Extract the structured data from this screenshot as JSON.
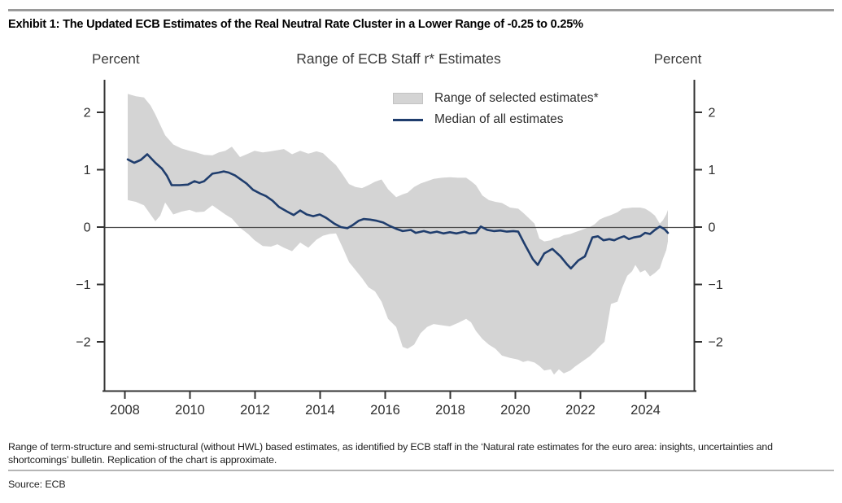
{
  "header": {
    "title": "Exhibit 1: The Updated ECB Estimates of the Real Neutral Rate Cluster in a Lower Range of -0.25 to 0.25%"
  },
  "chart": {
    "title": "Range of ECB Staff r* Estimates",
    "left_axis_label": "Percent",
    "right_axis_label": "Percent",
    "legend": [
      {
        "label": "Range of selected estimates*",
        "type": "band",
        "color": "#d4d4d4"
      },
      {
        "label": "Median of all estimates",
        "type": "line",
        "color": "#1f3d6d"
      }
    ]
  },
  "chart_data": {
    "type": "line",
    "title": "Range of ECB Staff r* Estimates",
    "xlabel": "",
    "ylabel": "Percent",
    "xlim": [
      2007.35,
      2025.5
    ],
    "ylim": [
      -2.85,
      2.57
    ],
    "xticks": [
      2008,
      2010,
      2012,
      2014,
      2016,
      2018,
      2020,
      2022,
      2024
    ],
    "yticks": [
      2,
      1,
      0,
      -1,
      -2
    ],
    "grid": false,
    "legend_position": "top-center-inside",
    "series": [
      {
        "name": "Range of selected estimates*",
        "type": "band",
        "color": "#d4d4d4",
        "points_format": [
          "year",
          "lower",
          "upper"
        ],
        "points": [
          [
            2008.1,
            0.47,
            2.32
          ],
          [
            2008.35,
            0.44,
            2.28
          ],
          [
            2008.6,
            0.38,
            2.26
          ],
          [
            2008.8,
            0.22,
            2.12
          ],
          [
            2008.95,
            0.1,
            1.96
          ],
          [
            2009.1,
            0.2,
            1.78
          ],
          [
            2009.25,
            0.43,
            1.6
          ],
          [
            2009.5,
            0.22,
            1.44
          ],
          [
            2009.75,
            0.27,
            1.37
          ],
          [
            2010.0,
            0.3,
            1.33
          ],
          [
            2010.2,
            0.26,
            1.3
          ],
          [
            2010.45,
            0.27,
            1.26
          ],
          [
            2010.7,
            0.38,
            1.25
          ],
          [
            2010.9,
            0.3,
            1.3
          ],
          [
            2011.1,
            0.22,
            1.33
          ],
          [
            2011.3,
            0.15,
            1.4
          ],
          [
            2011.55,
            -0.01,
            1.22
          ],
          [
            2011.8,
            -0.12,
            1.28
          ],
          [
            2012.0,
            -0.23,
            1.33
          ],
          [
            2012.25,
            -0.33,
            1.3
          ],
          [
            2012.5,
            -0.34,
            1.32
          ],
          [
            2012.7,
            -0.3,
            1.34
          ],
          [
            2012.9,
            -0.36,
            1.36
          ],
          [
            2013.15,
            -0.42,
            1.27
          ],
          [
            2013.4,
            -0.27,
            1.33
          ],
          [
            2013.65,
            -0.36,
            1.28
          ],
          [
            2013.9,
            -0.22,
            1.32
          ],
          [
            2014.1,
            -0.15,
            1.29
          ],
          [
            2014.3,
            -0.12,
            1.18
          ],
          [
            2014.5,
            -0.11,
            1.08
          ],
          [
            2014.7,
            -0.35,
            0.92
          ],
          [
            2014.9,
            -0.61,
            0.75
          ],
          [
            2015.1,
            -0.75,
            0.7
          ],
          [
            2015.3,
            -0.89,
            0.68
          ],
          [
            2015.5,
            -1.05,
            0.73
          ],
          [
            2015.7,
            -1.12,
            0.79
          ],
          [
            2015.9,
            -1.3,
            0.83
          ],
          [
            2016.1,
            -1.6,
            0.66
          ],
          [
            2016.35,
            -1.74,
            0.52
          ],
          [
            2016.55,
            -2.09,
            0.57
          ],
          [
            2016.7,
            -2.12,
            0.6
          ],
          [
            2016.9,
            -2.05,
            0.7
          ],
          [
            2017.1,
            -1.85,
            0.76
          ],
          [
            2017.3,
            -1.74,
            0.8
          ],
          [
            2017.5,
            -1.69,
            0.84
          ],
          [
            2017.75,
            -1.71,
            0.86
          ],
          [
            2018.0,
            -1.73,
            0.87
          ],
          [
            2018.25,
            -1.67,
            0.86
          ],
          [
            2018.5,
            -1.6,
            0.86
          ],
          [
            2018.65,
            -1.66,
            0.8
          ],
          [
            2018.8,
            -1.81,
            0.73
          ],
          [
            2019.0,
            -1.95,
            0.55
          ],
          [
            2019.2,
            -2.05,
            0.47
          ],
          [
            2019.4,
            -2.12,
            0.44
          ],
          [
            2019.6,
            -2.24,
            0.42
          ],
          [
            2019.85,
            -2.28,
            0.34
          ],
          [
            2020.1,
            -2.31,
            0.32
          ],
          [
            2020.25,
            -2.35,
            0.25
          ],
          [
            2020.4,
            -2.33,
            0.17
          ],
          [
            2020.6,
            -2.36,
            0.06
          ],
          [
            2020.75,
            -2.42,
            -0.2
          ],
          [
            2020.9,
            -2.5,
            -0.25
          ],
          [
            2021.1,
            -2.48,
            -0.23
          ],
          [
            2021.2,
            -2.57,
            -0.2
          ],
          [
            2021.35,
            -2.48,
            -0.18
          ],
          [
            2021.5,
            -2.55,
            -0.14
          ],
          [
            2021.7,
            -2.5,
            -0.12
          ],
          [
            2021.85,
            -2.43,
            -0.09
          ],
          [
            2022.1,
            -2.33,
            -0.04
          ],
          [
            2022.3,
            -2.25,
            0.0
          ],
          [
            2022.45,
            -2.17,
            0.05
          ],
          [
            2022.6,
            -2.08,
            0.13
          ],
          [
            2022.75,
            -2.0,
            0.17
          ],
          [
            2022.95,
            -1.34,
            0.21
          ],
          [
            2023.15,
            -1.3,
            0.26
          ],
          [
            2023.3,
            -1.05,
            0.32
          ],
          [
            2023.45,
            -0.85,
            0.33
          ],
          [
            2023.6,
            -0.77,
            0.34
          ],
          [
            2023.7,
            -0.66,
            0.34
          ],
          [
            2023.85,
            -0.79,
            0.34
          ],
          [
            2024.0,
            -0.75,
            0.32
          ],
          [
            2024.15,
            -0.86,
            0.27
          ],
          [
            2024.3,
            -0.8,
            0.2
          ],
          [
            2024.45,
            -0.72,
            0.06
          ],
          [
            2024.55,
            -0.55,
            0.12
          ],
          [
            2024.65,
            -0.4,
            0.22
          ],
          [
            2024.7,
            -0.25,
            0.3
          ]
        ]
      },
      {
        "name": "Median of all estimates",
        "type": "line",
        "color": "#1f3d6d",
        "points_format": [
          "year",
          "value"
        ],
        "points": [
          [
            2008.1,
            1.18
          ],
          [
            2008.3,
            1.12
          ],
          [
            2008.5,
            1.17
          ],
          [
            2008.7,
            1.27
          ],
          [
            2008.95,
            1.12
          ],
          [
            2009.15,
            1.02
          ],
          [
            2009.3,
            0.9
          ],
          [
            2009.45,
            0.73
          ],
          [
            2009.7,
            0.73
          ],
          [
            2009.95,
            0.74
          ],
          [
            2010.15,
            0.8
          ],
          [
            2010.3,
            0.77
          ],
          [
            2010.45,
            0.8
          ],
          [
            2010.7,
            0.93
          ],
          [
            2010.9,
            0.95
          ],
          [
            2011.05,
            0.97
          ],
          [
            2011.2,
            0.95
          ],
          [
            2011.4,
            0.9
          ],
          [
            2011.55,
            0.84
          ],
          [
            2011.75,
            0.76
          ],
          [
            2011.95,
            0.65
          ],
          [
            2012.15,
            0.59
          ],
          [
            2012.35,
            0.54
          ],
          [
            2012.55,
            0.46
          ],
          [
            2012.75,
            0.35
          ],
          [
            2013.0,
            0.27
          ],
          [
            2013.2,
            0.21
          ],
          [
            2013.4,
            0.29
          ],
          [
            2013.6,
            0.22
          ],
          [
            2013.8,
            0.19
          ],
          [
            2014.0,
            0.22
          ],
          [
            2014.2,
            0.16
          ],
          [
            2014.45,
            0.06
          ],
          [
            2014.65,
            0.0
          ],
          [
            2014.85,
            -0.02
          ],
          [
            2015.0,
            0.03
          ],
          [
            2015.2,
            0.11
          ],
          [
            2015.35,
            0.14
          ],
          [
            2015.55,
            0.13
          ],
          [
            2015.75,
            0.11
          ],
          [
            2015.95,
            0.08
          ],
          [
            2016.15,
            0.02
          ],
          [
            2016.35,
            -0.03
          ],
          [
            2016.55,
            -0.07
          ],
          [
            2016.8,
            -0.05
          ],
          [
            2016.95,
            -0.1
          ],
          [
            2017.2,
            -0.07
          ],
          [
            2017.4,
            -0.1
          ],
          [
            2017.6,
            -0.08
          ],
          [
            2017.8,
            -0.11
          ],
          [
            2018.0,
            -0.09
          ],
          [
            2018.2,
            -0.11
          ],
          [
            2018.45,
            -0.08
          ],
          [
            2018.6,
            -0.11
          ],
          [
            2018.8,
            -0.1
          ],
          [
            2018.95,
            0.01
          ],
          [
            2019.15,
            -0.05
          ],
          [
            2019.35,
            -0.07
          ],
          [
            2019.55,
            -0.06
          ],
          [
            2019.75,
            -0.08
          ],
          [
            2019.95,
            -0.07
          ],
          [
            2020.1,
            -0.08
          ],
          [
            2020.3,
            -0.3
          ],
          [
            2020.55,
            -0.56
          ],
          [
            2020.7,
            -0.66
          ],
          [
            2020.9,
            -0.46
          ],
          [
            2021.15,
            -0.38
          ],
          [
            2021.4,
            -0.51
          ],
          [
            2021.6,
            -0.65
          ],
          [
            2021.72,
            -0.72
          ],
          [
            2021.95,
            -0.58
          ],
          [
            2022.15,
            -0.51
          ],
          [
            2022.38,
            -0.18
          ],
          [
            2022.55,
            -0.16
          ],
          [
            2022.72,
            -0.23
          ],
          [
            2022.9,
            -0.21
          ],
          [
            2023.05,
            -0.23
          ],
          [
            2023.2,
            -0.19
          ],
          [
            2023.35,
            -0.16
          ],
          [
            2023.5,
            -0.21
          ],
          [
            2023.65,
            -0.18
          ],
          [
            2023.85,
            -0.16
          ],
          [
            2024.0,
            -0.1
          ],
          [
            2024.15,
            -0.12
          ],
          [
            2024.3,
            -0.05
          ],
          [
            2024.45,
            0.01
          ],
          [
            2024.6,
            -0.04
          ],
          [
            2024.7,
            -0.1
          ]
        ]
      }
    ]
  },
  "footnote": "Range of term-structure and semi-structural (without HWL) based estimates, as identified by ECB staff in the ‘Natural rate estimates for the euro area: insights, uncertainties and shortcomings’ bulletin. Replication of the chart is approximate.",
  "source": "Source: ECB",
  "colors": {
    "band": "#d4d4d4",
    "median_line": "#1f3d6d",
    "axis": "#333333",
    "zero_line": "#4d4d4d",
    "rule": "#9a9a9a"
  }
}
